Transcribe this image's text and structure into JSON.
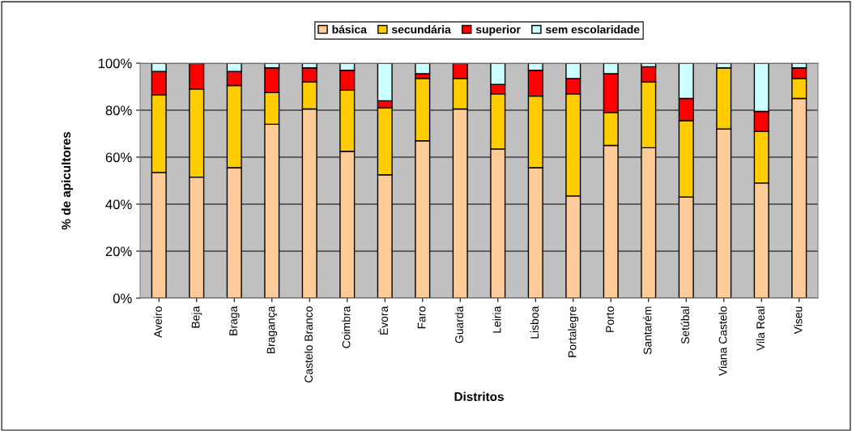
{
  "chart_data": {
    "type": "bar",
    "stacked": true,
    "xlabel": "Distritos",
    "ylabel": "% de apicultores",
    "categories": [
      "Aveiro",
      "Beja",
      "Braga",
      "Bragança",
      "Castelo Branco",
      "Coimbra",
      "Évora",
      "Faro",
      "Guarda",
      "Leiria",
      "Lisboa",
      "Portalegre",
      "Porto",
      "Santarém",
      "Setúbal",
      "Viana Castelo",
      "Vila Real",
      "Viseu"
    ],
    "series": [
      {
        "name": "básica",
        "color": "#ffcc99",
        "values": [
          53.5,
          51.5,
          55.5,
          74,
          80.5,
          62.5,
          52.5,
          67,
          80.5,
          63.5,
          55.5,
          43.5,
          65,
          64,
          43,
          72,
          49,
          85
        ]
      },
      {
        "name": "secundária",
        "color": "#ffcc00",
        "values": [
          33,
          37.5,
          35,
          13.5,
          11.5,
          26,
          28.5,
          26.5,
          13,
          23.5,
          30.5,
          43.5,
          14,
          28,
          32.5,
          26,
          22,
          8.5
        ]
      },
      {
        "name": "superior",
        "color": "#ff0000",
        "values": [
          10,
          11,
          6,
          10.5,
          6,
          8.5,
          3,
          2,
          6.5,
          4,
          11,
          6.5,
          16.5,
          6.5,
          9.5,
          null,
          8.5,
          4.5
        ]
      },
      {
        "name": "sem escolaridade",
        "color": "#ccffff",
        "values": [
          3.5,
          null,
          3.5,
          2,
          2,
          3,
          16,
          4.5,
          null,
          9,
          3,
          6.5,
          4.5,
          1.5,
          15,
          2,
          20.5,
          2
        ]
      }
    ],
    "ylim": [
      0,
      100
    ],
    "yticks": [
      {
        "value": 0,
        "label": "0%"
      },
      {
        "value": 20,
        "label": "20%"
      },
      {
        "value": 40,
        "label": "40%"
      },
      {
        "value": 60,
        "label": "60%"
      },
      {
        "value": 80,
        "label": "80%"
      },
      {
        "value": 100,
        "label": "100%"
      }
    ],
    "grid": "y",
    "legend": "top"
  }
}
